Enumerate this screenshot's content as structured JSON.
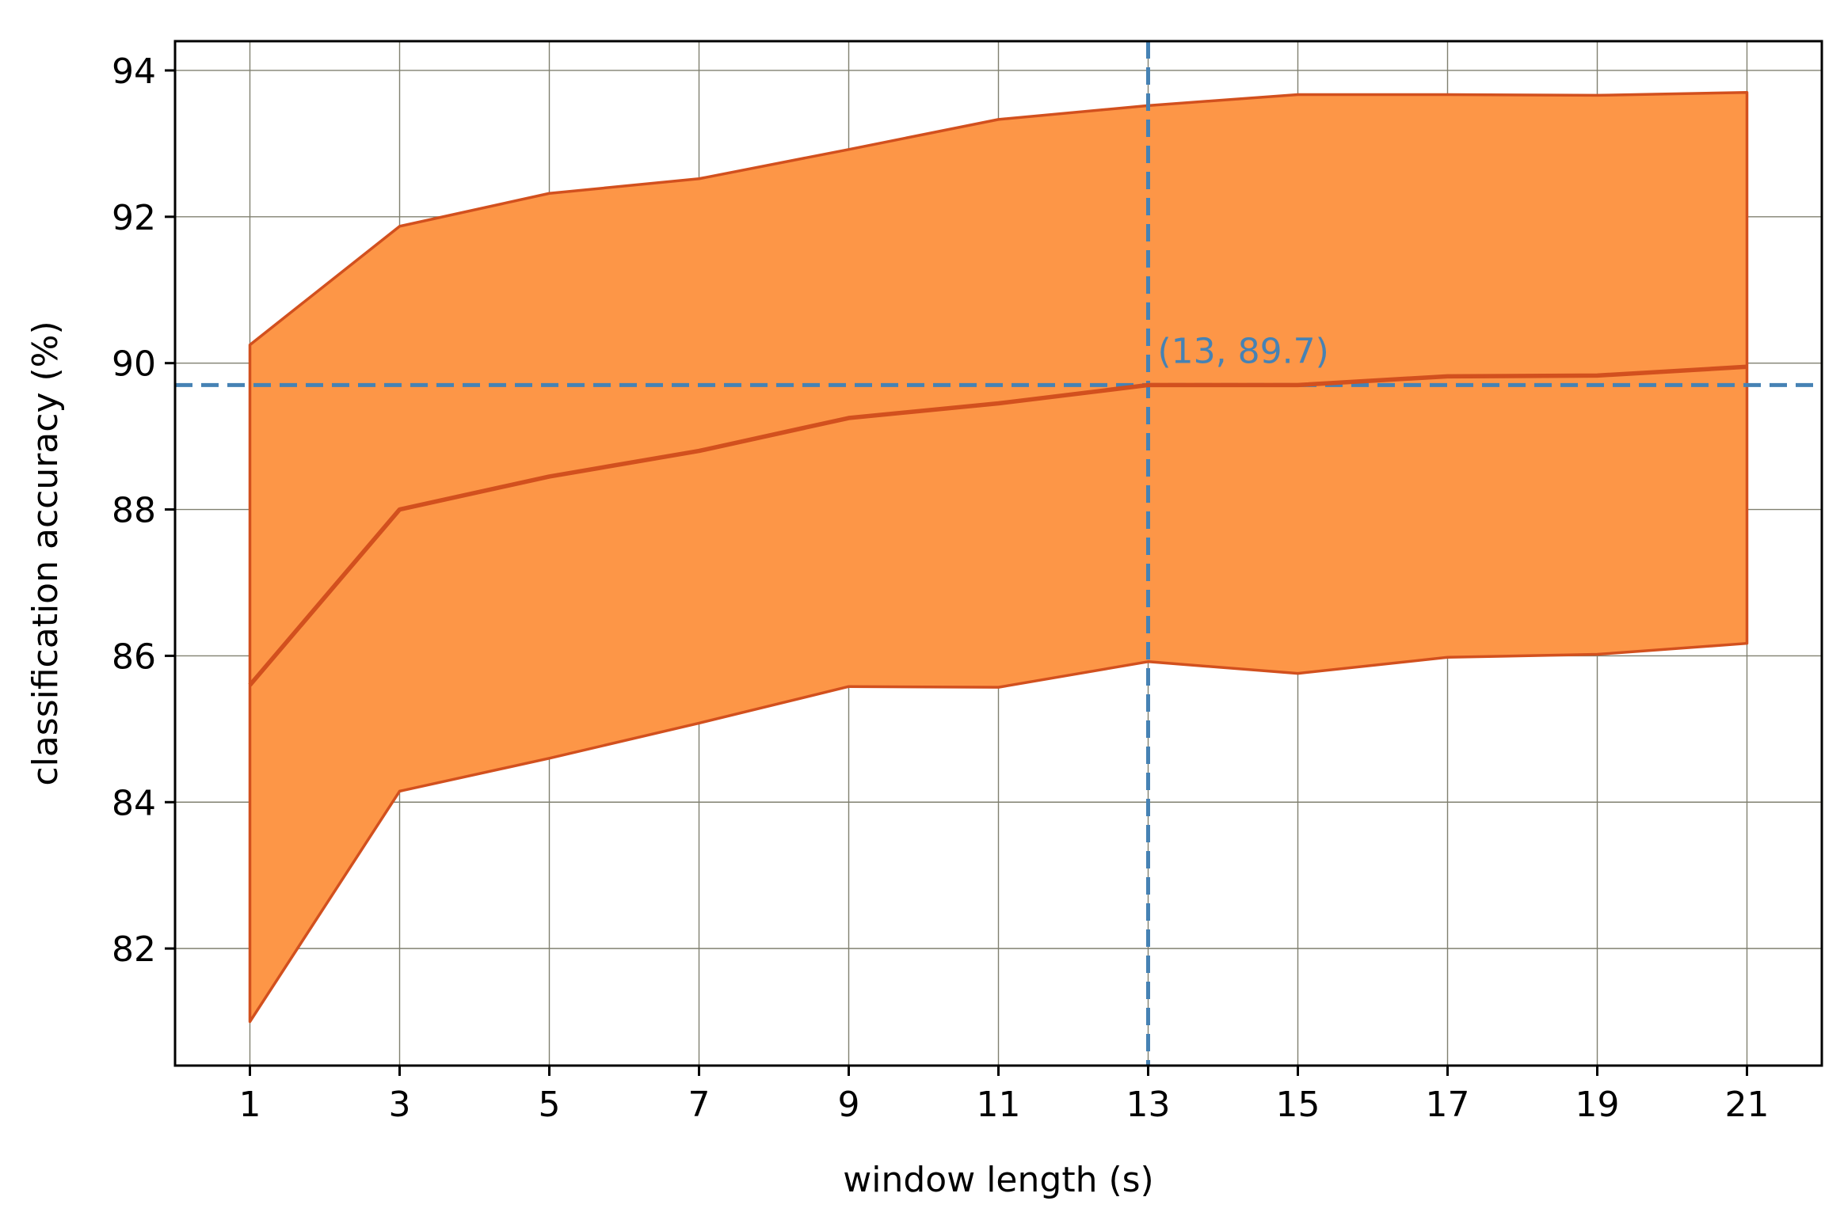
{
  "chart_data": {
    "type": "line",
    "title": "",
    "xlabel": "window length (s)",
    "ylabel": "classification accuracy (%)",
    "xlim": [
      0,
      22
    ],
    "ylim": [
      80.4,
      94.4
    ],
    "grid": true,
    "xticks": [
      1,
      3,
      5,
      7,
      9,
      11,
      13,
      15,
      17,
      19,
      21
    ],
    "yticks": [
      82,
      84,
      86,
      88,
      90,
      92,
      94
    ],
    "x": [
      1,
      3,
      5,
      7,
      9,
      11,
      13,
      15,
      17,
      19,
      21
    ],
    "series": [
      {
        "role": "mean",
        "values": [
          85.6,
          88.0,
          88.45,
          88.8,
          89.25,
          89.45,
          89.7,
          89.7,
          89.82,
          89.83,
          89.95
        ]
      },
      {
        "role": "upper",
        "values": [
          90.25,
          91.87,
          92.32,
          92.52,
          92.92,
          93.33,
          93.52,
          93.67,
          93.67,
          93.66,
          93.7
        ]
      },
      {
        "role": "lower",
        "values": [
          81.0,
          84.15,
          84.6,
          85.08,
          85.58,
          85.57,
          85.92,
          85.76,
          85.98,
          86.02,
          86.17
        ]
      }
    ],
    "reference_lines": {
      "x": 13,
      "y": 89.7
    },
    "annotation": {
      "text": "(13, 89.7)",
      "x": 13,
      "y": 89.7
    },
    "colors": {
      "line": "#d2501e",
      "band": "#fd9647",
      "reference": "#4682b4",
      "grid": "#808070"
    }
  }
}
